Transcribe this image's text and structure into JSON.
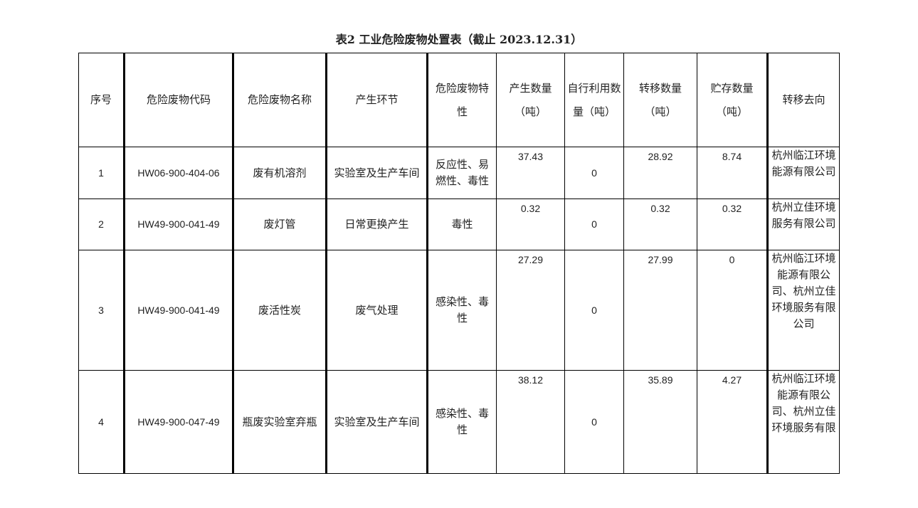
{
  "title": "表2  工业危险废物处置表（截止 2023.12.31）",
  "headers": [
    "序号",
    "危险废物代码",
    "危险废物名称",
    "产生环节",
    "危险废物特性",
    "产生数量（吨）",
    "自行利用数量（吨）",
    "转移数量（吨）",
    "贮存数量（吨）",
    "转移去向"
  ],
  "rows": [
    {
      "no": "1",
      "code": "HW06-900-404-06",
      "name": "废有机溶剂",
      "stage": "实验室及生产车间",
      "property": "反应性、易燃性、毒性",
      "produced": "37.43",
      "self_used": "0",
      "transferred": "28.92",
      "stored": "8.74",
      "destination": "杭州临江环境能源有限公司"
    },
    {
      "no": "2",
      "code": "HW49-900-041-49",
      "name": "废灯管",
      "stage": "日常更换产生",
      "property": "毒性",
      "produced": "0.32",
      "self_used": "0",
      "transferred": "0.32",
      "stored": "0.32",
      "destination": "杭州立佳环境服务有限公司"
    },
    {
      "no": "3",
      "code": "HW49-900-041-49",
      "name": "废活性炭",
      "stage": "废气处理",
      "property": "感染性、毒性",
      "produced": "27.29",
      "self_used": "0",
      "transferred": "27.99",
      "stored": "0",
      "destination": "杭州临江环境能源有限公司、杭州立佳环境服务有限公司"
    },
    {
      "no": "4",
      "code": "HW49-900-047-49",
      "name": "瓶废实验室弃瓶",
      "stage": "实验室及生产车间",
      "property": "感染性、毒性",
      "produced": "38.12",
      "self_used": "0",
      "transferred": "35.89",
      "stored": "4.27",
      "destination": "杭州临江环境能源有限公司、杭州立佳环境服务有限"
    }
  ]
}
